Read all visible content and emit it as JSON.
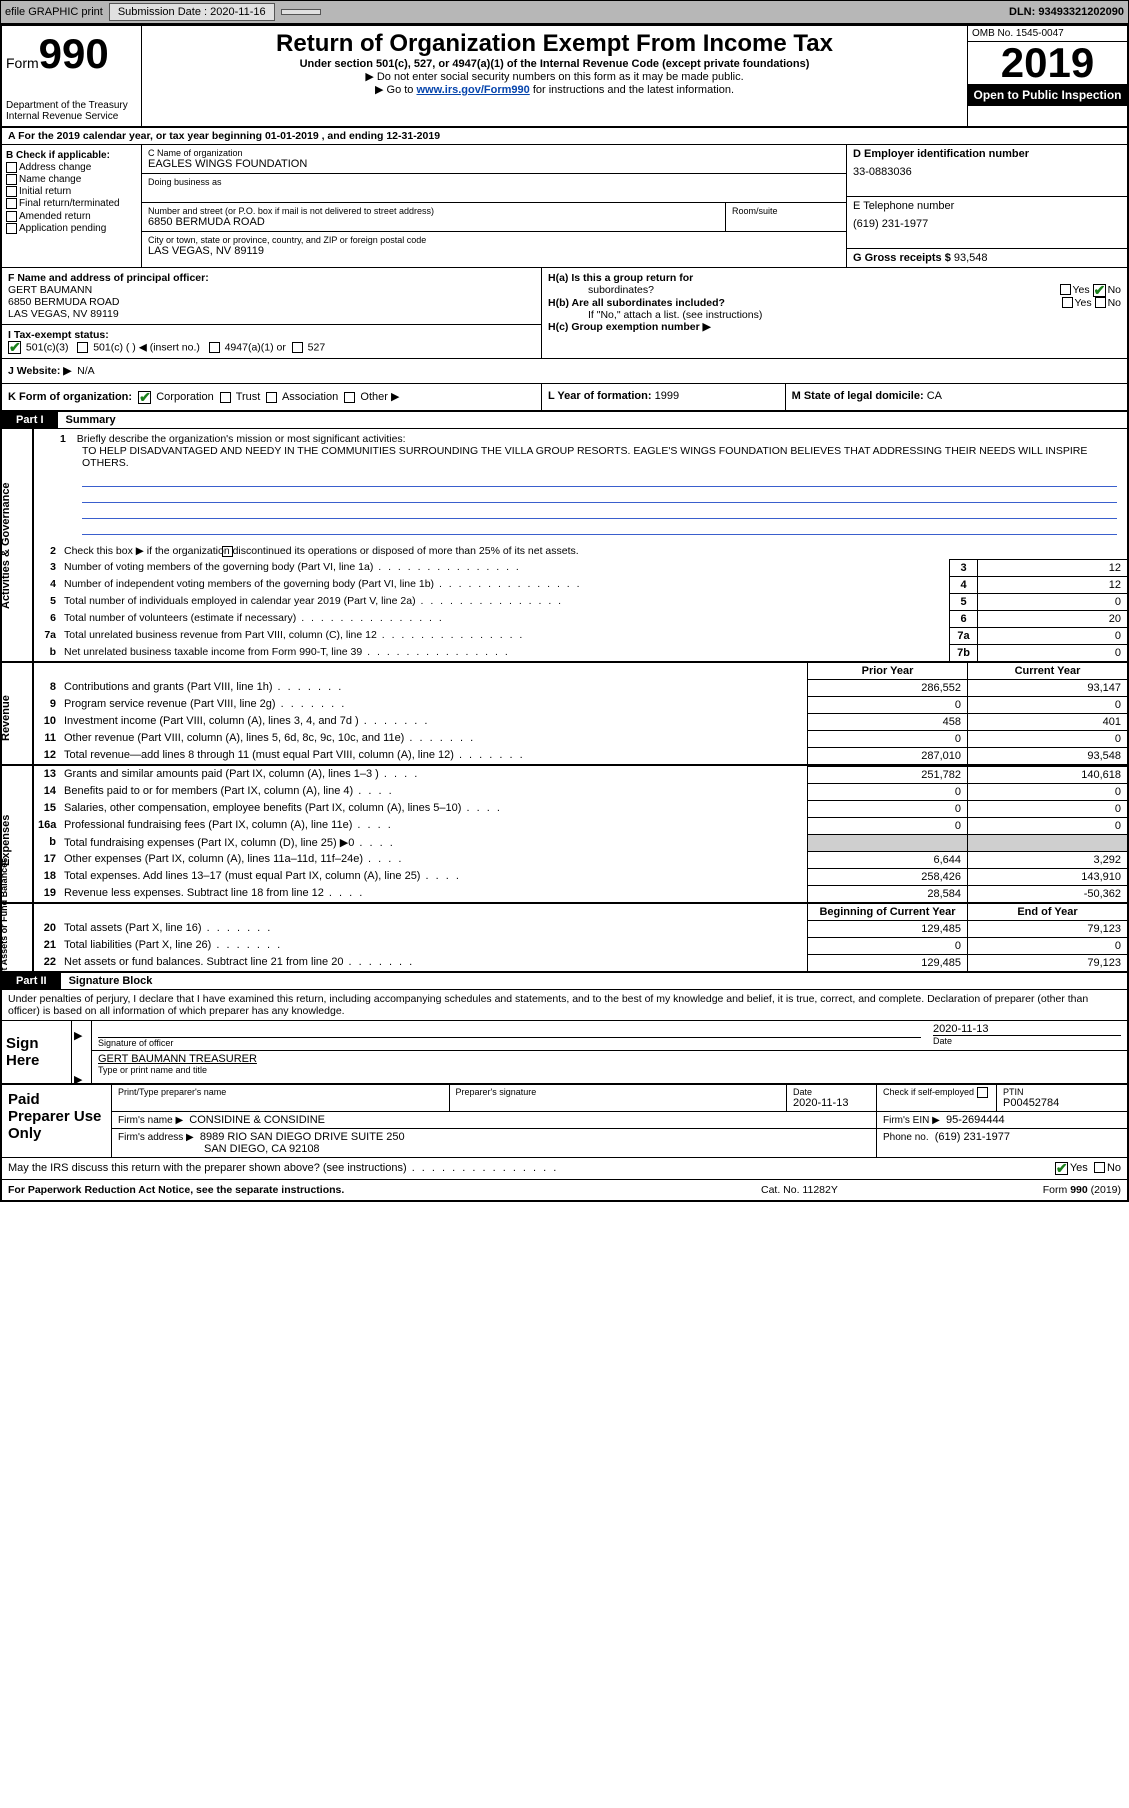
{
  "topbar": {
    "efile": "efile GRAPHIC print",
    "subdate_lbl": "Submission Date :",
    "subdate": "2020-11-16",
    "dln_lbl": "DLN:",
    "dln": "93493321202090"
  },
  "header": {
    "form_prefix": "Form",
    "form_num": "990",
    "dept": "Department of the Treasury Internal Revenue Service",
    "title": "Return of Organization Exempt From Income Tax",
    "sub": "Under section 501(c), 527, or 4947(a)(1) of the Internal Revenue Code (except private foundations)",
    "nossn": "▶ Do not enter social security numbers on this form as it may be made public.",
    "goto_pre": "▶ Go to ",
    "goto_link": "www.irs.gov/Form990",
    "goto_post": " for instructions and the latest information.",
    "omb": "OMB No. 1545-0047",
    "year": "2019",
    "open": "Open to Public Inspection"
  },
  "lineA": "A For the 2019 calendar year, or tax year beginning 01-01-2019    , and ending 12-31-2019",
  "boxB": {
    "hdr": "B Check if applicable:",
    "addr": "Address change",
    "name": "Name change",
    "init": "Initial return",
    "final": "Final return/terminated",
    "amend": "Amended return",
    "app": "Application pending"
  },
  "boxC": {
    "lbl": "C Name of organization",
    "name": "EAGLES WINGS FOUNDATION",
    "dba_lbl": "Doing business as",
    "num_lbl": "Number and street (or P.O. box if mail is not delivered to street address)",
    "num": "6850 BERMUDA ROAD",
    "room_lbl": "Room/suite",
    "city_lbl": "City or town, state or province, country, and ZIP or foreign postal code",
    "city": "LAS VEGAS, NV  89119"
  },
  "boxD": {
    "lbl": "D Employer identification number",
    "val": "33-0883036"
  },
  "boxE": {
    "lbl": "E Telephone number",
    "val": "(619) 231-1977"
  },
  "boxG": {
    "lbl": "G Gross receipts $",
    "val": "93,548"
  },
  "boxF": {
    "lbl": "F  Name and address of principal officer:",
    "l1": "GERT BAUMANN",
    "l2": "6850 BERMUDA ROAD",
    "l3": "LAS VEGAS, NV  89119"
  },
  "boxH": {
    "a": "H(a)  Is this a group return for",
    "a2": "subordinates?",
    "b": "H(b)  Are all subordinates included?",
    "note": "If \"No,\" attach a list. (see instructions)",
    "c": "H(c)  Group exemption number ▶",
    "yes": "Yes",
    "no": "No"
  },
  "rowI": {
    "lbl": "I  Tax-exempt status:",
    "o1": "501(c)(3)",
    "o2": "501(c) (  ) ◀ (insert no.)",
    "o3": "4947(a)(1) or",
    "o4": "527"
  },
  "rowJ": {
    "lbl": "J  Website: ▶",
    "val": "N/A"
  },
  "rowK": {
    "lbl": "K Form of organization:",
    "corp": "Corporation",
    "trust": "Trust",
    "assoc": "Association",
    "other": "Other ▶"
  },
  "rowL": {
    "lbl": "L Year of formation:",
    "val": "1999"
  },
  "rowM": {
    "lbl": "M State of legal domicile:",
    "val": "CA"
  },
  "part1": {
    "tag": "Part I",
    "title": "Summary"
  },
  "sect_labels": {
    "ag": "Activities & Governance",
    "rev": "Revenue",
    "exp": "Expenses",
    "na": "Net Assets or Fund Balances"
  },
  "l1": {
    "num": "1",
    "desc": "Briefly describe the organization's mission or most significant activities:",
    "text": "TO HELP DISADVANTAGED AND NEEDY IN THE COMMUNITIES SURROUNDING THE VILLA GROUP RESORTS. EAGLE'S WINGS FOUNDATION BELIEVES THAT ADDRESSING THEIR NEEDS WILL INSPIRE OTHERS."
  },
  "l2": {
    "num": "2",
    "desc": "Check this box ▶     if the organization discontinued its operations or disposed of more than 25% of its net assets."
  },
  "lines_ag": [
    {
      "n": "3",
      "d": "Number of voting members of the governing body (Part VI, line 1a)",
      "box": "3",
      "v": "12"
    },
    {
      "n": "4",
      "d": "Number of independent voting members of the governing body (Part VI, line 1b)",
      "box": "4",
      "v": "12"
    },
    {
      "n": "5",
      "d": "Total number of individuals employed in calendar year 2019 (Part V, line 2a)",
      "box": "5",
      "v": "0"
    },
    {
      "n": "6",
      "d": "Total number of volunteers (estimate if necessary)",
      "box": "6",
      "v": "20"
    },
    {
      "n": "7a",
      "d": "Total unrelated business revenue from Part VIII, column (C), line 12",
      "box": "7a",
      "v": "0"
    },
    {
      "n": "b",
      "d": "Net unrelated business taxable income from Form 990-T, line 39",
      "box": "7b",
      "v": "0"
    }
  ],
  "colhdr": {
    "py": "Prior Year",
    "cy": "Current Year"
  },
  "lines_rev": [
    {
      "n": "8",
      "d": "Contributions and grants (Part VIII, line 1h)",
      "py": "286,552",
      "cy": "93,147"
    },
    {
      "n": "9",
      "d": "Program service revenue (Part VIII, line 2g)",
      "py": "0",
      "cy": "0"
    },
    {
      "n": "10",
      "d": "Investment income (Part VIII, column (A), lines 3, 4, and 7d )",
      "py": "458",
      "cy": "401"
    },
    {
      "n": "11",
      "d": "Other revenue (Part VIII, column (A), lines 5, 6d, 8c, 9c, 10c, and 11e)",
      "py": "0",
      "cy": "0"
    },
    {
      "n": "12",
      "d": "Total revenue—add lines 8 through 11 (must equal Part VIII, column (A), line 12)",
      "py": "287,010",
      "cy": "93,548"
    }
  ],
  "lines_exp": [
    {
      "n": "13",
      "d": "Grants and similar amounts paid (Part IX, column (A), lines 1–3 )",
      "py": "251,782",
      "cy": "140,618"
    },
    {
      "n": "14",
      "d": "Benefits paid to or for members (Part IX, column (A), line 4)",
      "py": "0",
      "cy": "0"
    },
    {
      "n": "15",
      "d": "Salaries, other compensation, employee benefits (Part IX, column (A), lines 5–10)",
      "py": "0",
      "cy": "0"
    },
    {
      "n": "16a",
      "d": "Professional fundraising fees (Part IX, column (A), line 11e)",
      "py": "0",
      "cy": "0"
    },
    {
      "n": "b",
      "d": "Total fundraising expenses (Part IX, column (D), line 25) ▶0",
      "py": "",
      "cy": "",
      "shade": true
    },
    {
      "n": "17",
      "d": "Other expenses (Part IX, column (A), lines 11a–11d, 11f–24e)",
      "py": "6,644",
      "cy": "3,292"
    },
    {
      "n": "18",
      "d": "Total expenses. Add lines 13–17 (must equal Part IX, column (A), line 25)",
      "py": "258,426",
      "cy": "143,910"
    },
    {
      "n": "19",
      "d": "Revenue less expenses. Subtract line 18 from line 12",
      "py": "28,584",
      "cy": "-50,362"
    }
  ],
  "colhdr2": {
    "by": "Beginning of Current Year",
    "ey": "End of Year"
  },
  "lines_na": [
    {
      "n": "20",
      "d": "Total assets (Part X, line 16)",
      "py": "129,485",
      "cy": "79,123"
    },
    {
      "n": "21",
      "d": "Total liabilities (Part X, line 26)",
      "py": "0",
      "cy": "0"
    },
    {
      "n": "22",
      "d": "Net assets or fund balances. Subtract line 21 from line 20",
      "py": "129,485",
      "cy": "79,123"
    }
  ],
  "part2": {
    "tag": "Part II",
    "title": "Signature Block"
  },
  "penalties": "Under penalties of perjury, I declare that I have examined this return, including accompanying schedules and statements, and to the best of my knowledge and belief, it is true, correct, and complete. Declaration of preparer (other than officer) is based on all information of which preparer has any knowledge.",
  "sign": {
    "here": "Sign Here",
    "sig_lbl": "Signature of officer",
    "date_lbl": "Date",
    "date": "2020-11-13",
    "name": "GERT BAUMANN  TREASURER",
    "name_lbl": "Type or print name and title"
  },
  "paid": {
    "title": "Paid Preparer Use Only",
    "pname_lbl": "Print/Type preparer's name",
    "psig_lbl": "Preparer's signature",
    "pdate_lbl": "Date",
    "pdate": "2020-11-13",
    "check_lbl": "Check     if self-employed",
    "ptin_lbl": "PTIN",
    "ptin": "P00452784",
    "firm_lbl": "Firm's name    ▶",
    "firm": "CONSIDINE & CONSIDINE",
    "fein_lbl": "Firm's EIN ▶",
    "fein": "95-2694444",
    "faddr_lbl": "Firm's address ▶",
    "faddr1": "8989 RIO SAN DIEGO DRIVE SUITE 250",
    "faddr2": "SAN DIEGO, CA  92108",
    "phone_lbl": "Phone no.",
    "phone": "(619) 231-1977"
  },
  "discuss": {
    "q": "May the IRS discuss this return with the preparer shown above? (see instructions)",
    "yes": "Yes",
    "no": "No"
  },
  "footer": {
    "pra": "For Paperwork Reduction Act Notice, see the separate instructions.",
    "cat": "Cat. No. 11282Y",
    "form": "Form 990 (2019)"
  },
  "colors": {
    "link": "#0645ad",
    "rule": "#3a5fcd",
    "check": "#1a7f1a",
    "topbar": "#b7b7b7",
    "shade": "#cfcfcf"
  }
}
